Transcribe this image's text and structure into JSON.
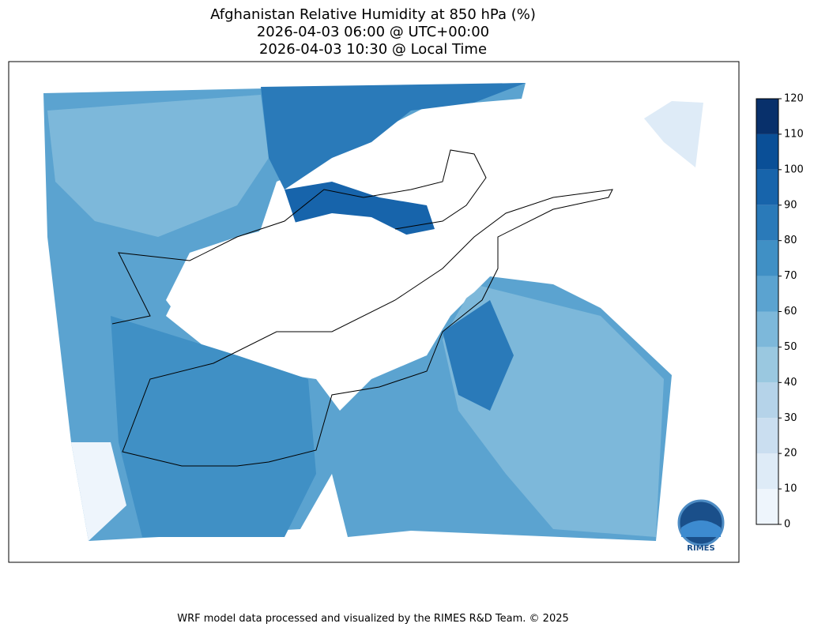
{
  "title_lines": [
    "Afghanistan Relative Humidity at 850 hPa (%)",
    "2026-04-03 06:00 @ UTC+00:00",
    "2026-04-03 10:30 @ Local Time"
  ],
  "colorbar": {
    "ticks": [
      0,
      10,
      20,
      30,
      40,
      50,
      60,
      70,
      80,
      90,
      100,
      110,
      120
    ],
    "colors": [
      "#eef5fc",
      "#deebf7",
      "#cadef0",
      "#b5d3e9",
      "#9ac8e0",
      "#7db8da",
      "#5ba3d0",
      "#4090c5",
      "#2a7ab9",
      "#1764ab",
      "#0a4f97",
      "#08306b"
    ]
  },
  "logo_text": "RIMES",
  "footer": "WRF model data processed and visualized by the RIMES R&D Team. © 2025"
}
